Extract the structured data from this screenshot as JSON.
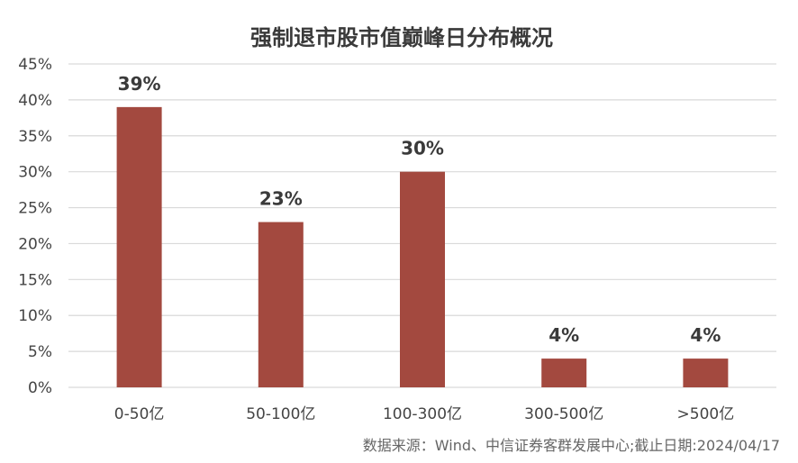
{
  "chart_data": {
    "type": "bar",
    "title": "强制退市股市值巅峰日分布概况",
    "categories": [
      "0-50亿",
      "50-100亿",
      "100-300亿",
      "300-500亿",
      ">500亿"
    ],
    "values": [
      39,
      23,
      30,
      4,
      4
    ],
    "value_suffix": "%",
    "data_labels": [
      "39%",
      "23%",
      "30%",
      "4%",
      "4%"
    ],
    "y_ticks": [
      "0%",
      "5%",
      "10%",
      "15%",
      "20%",
      "25%",
      "30%",
      "35%",
      "40%",
      "45%"
    ],
    "ylim": [
      0,
      45
    ],
    "y_tick_step": 5,
    "grid": true,
    "legend": "none",
    "bar_color": "#A3493F",
    "grid_color": "#d9d9d9"
  },
  "source_note": "数据来源：Wind、中信证券客群发展中心;截止日期:2024/04/17"
}
